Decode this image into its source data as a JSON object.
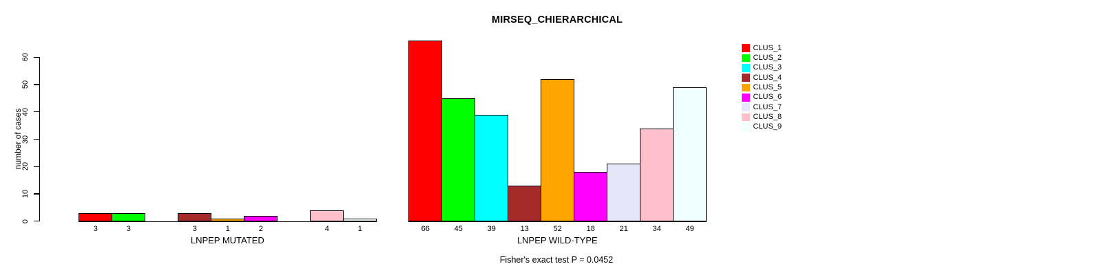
{
  "chart_data": {
    "type": "bar",
    "title": "MIRSEQ_CHIERARCHICAL",
    "ylabel": "number of cases",
    "xlabel": "",
    "ylim": [
      0,
      60
    ],
    "yticks": [
      0,
      10,
      20,
      30,
      40,
      50,
      60
    ],
    "grid": false,
    "legend_position": "top-right",
    "categories": [
      "CLUS_1",
      "CLUS_2",
      "CLUS_3",
      "CLUS_4",
      "CLUS_5",
      "CLUS_6",
      "CLUS_7",
      "CLUS_8",
      "CLUS_9"
    ],
    "colors": [
      "#FF0000",
      "#00FF00",
      "#00FFFF",
      "#A52A2A",
      "#FFA500",
      "#FF00FF",
      "#E6E6FA",
      "#FFC0CB",
      "#F0FFFF"
    ],
    "bar_border_color": "#000000",
    "groups": [
      {
        "label": "LNPEP MUTATED",
        "values": [
          3,
          3,
          0,
          3,
          1,
          2,
          0,
          4,
          1
        ]
      },
      {
        "label": "LNPEP WILD-TYPE",
        "values": [
          66,
          45,
          39,
          13,
          52,
          18,
          21,
          34,
          49
        ]
      }
    ],
    "value_labels_shown_for_zero": false,
    "annotation": "Fisher's exact test P = 0.0452"
  }
}
